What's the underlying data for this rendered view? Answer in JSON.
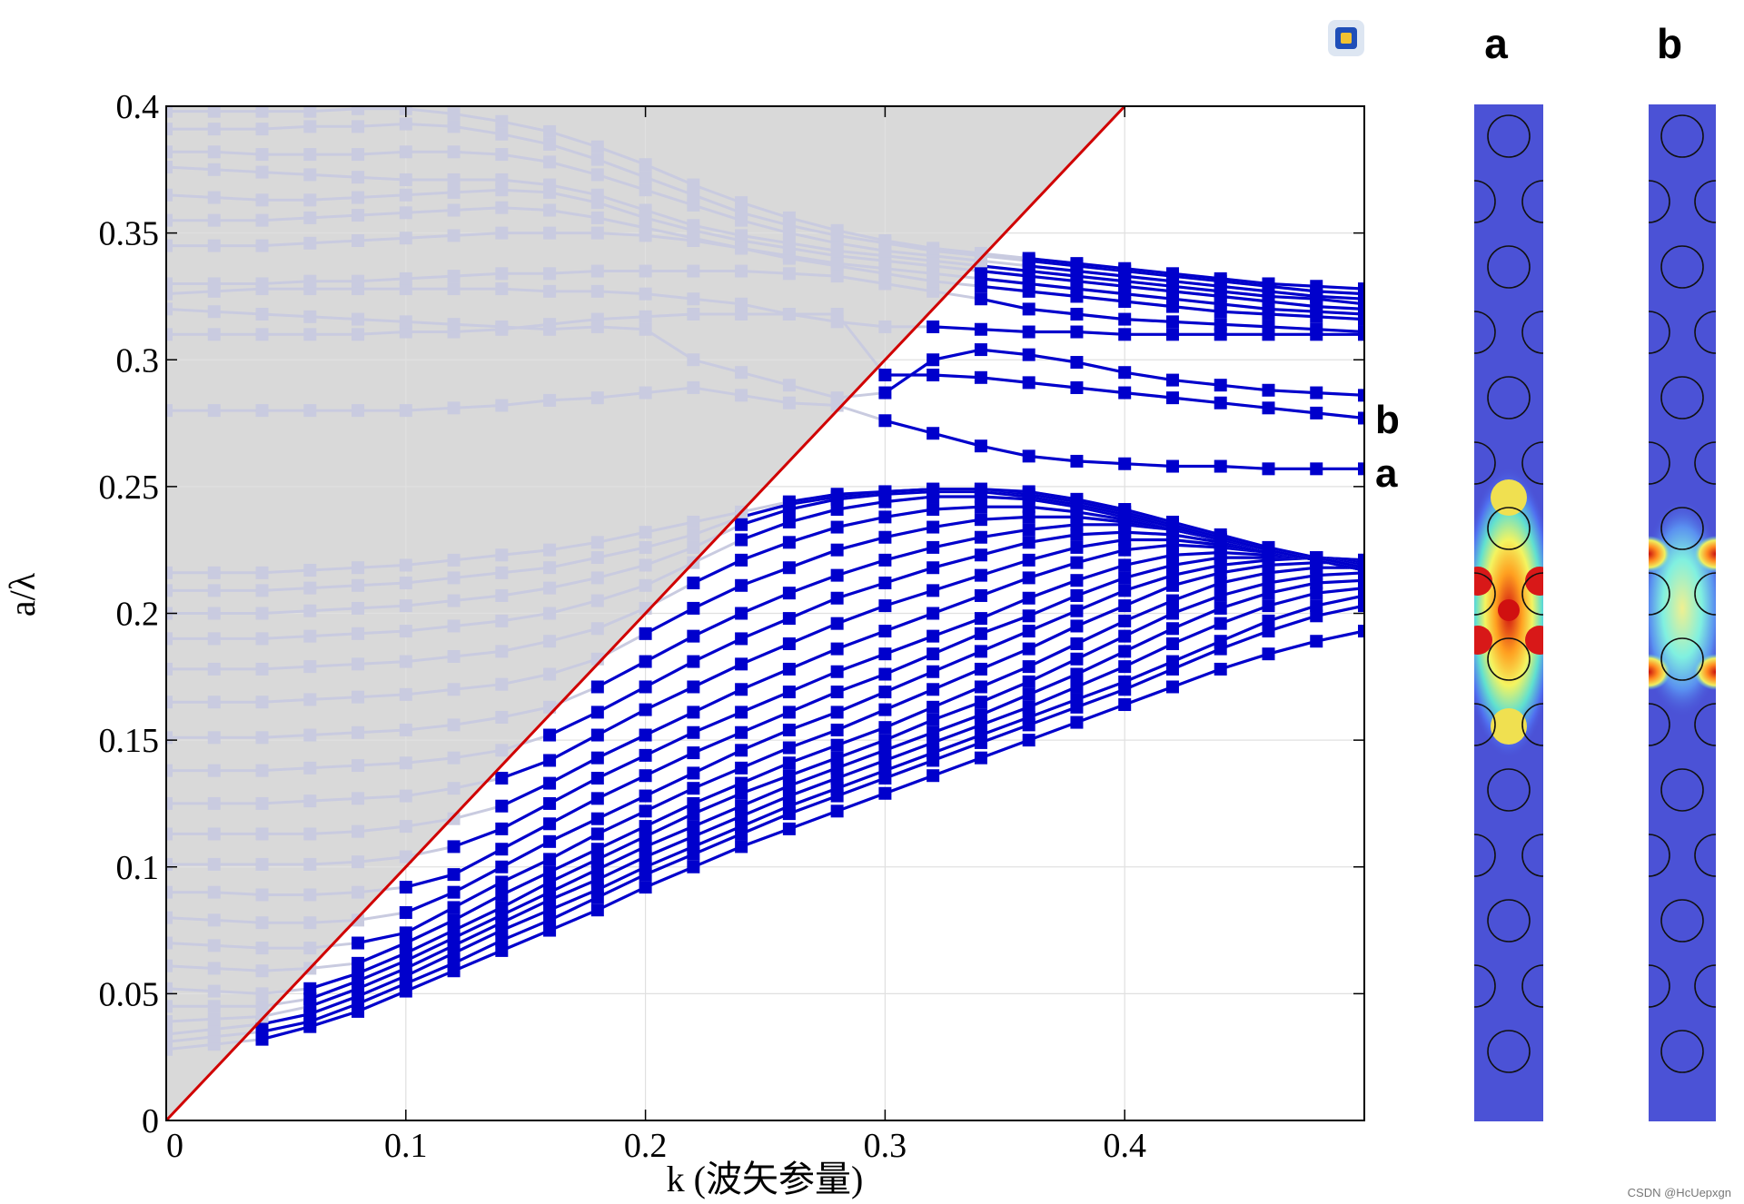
{
  "chart_data": {
    "type": "line",
    "title": "",
    "xlabel": "k (波矢参量)",
    "ylabel": "a/λ",
    "xlim": [
      0,
      0.5
    ],
    "ylim": [
      0,
      0.4
    ],
    "xticks": [
      0,
      0.1,
      0.2,
      0.3,
      0.4
    ],
    "xtick_labels": [
      "0",
      "0.1",
      "0.2",
      "0.3",
      "0.4"
    ],
    "yticks": [
      0,
      0.05,
      0.1,
      0.15,
      0.2,
      0.25,
      0.3,
      0.35,
      0.4
    ],
    "ytick_labels": [
      "0",
      "0.05",
      "0.1",
      "0.15",
      "0.2",
      "0.25",
      "0.3",
      "0.35",
      "0.4"
    ],
    "grid": true,
    "light_line": {
      "x": [
        0,
        0.4
      ],
      "y": [
        0,
        0.4
      ],
      "color": "#d00000"
    },
    "light_cone_fill": "#d9d9d9",
    "series_color": "#0000cc",
    "faded_color": "#c9cbe0",
    "k": [
      0,
      0.02,
      0.04,
      0.06,
      0.08,
      0.1,
      0.12,
      0.14,
      0.16,
      0.18,
      0.2,
      0.22,
      0.24,
      0.26,
      0.28,
      0.3,
      0.32,
      0.34,
      0.36,
      0.38,
      0.4,
      0.42,
      0.44,
      0.46,
      0.48,
      0.5
    ],
    "bands": [
      [
        0.028,
        0.03,
        0.032,
        0.037,
        0.043,
        0.051,
        0.059,
        0.067,
        0.075,
        0.083,
        0.092,
        0.1,
        0.108,
        0.115,
        0.122,
        0.129,
        0.136,
        0.143,
        0.15,
        0.157,
        0.164,
        0.171,
        0.178,
        0.184,
        0.189,
        0.193
      ],
      [
        0.031,
        0.033,
        0.035,
        0.039,
        0.046,
        0.054,
        0.062,
        0.071,
        0.079,
        0.088,
        0.097,
        0.105,
        0.113,
        0.121,
        0.128,
        0.135,
        0.142,
        0.149,
        0.156,
        0.163,
        0.17,
        0.178,
        0.186,
        0.193,
        0.199,
        0.203
      ],
      [
        0.034,
        0.036,
        0.038,
        0.042,
        0.049,
        0.057,
        0.066,
        0.075,
        0.083,
        0.091,
        0.1,
        0.108,
        0.116,
        0.124,
        0.131,
        0.138,
        0.145,
        0.152,
        0.159,
        0.166,
        0.173,
        0.181,
        0.189,
        0.197,
        0.203,
        0.207
      ],
      [
        0.039,
        0.04,
        0.041,
        0.045,
        0.052,
        0.06,
        0.069,
        0.078,
        0.087,
        0.095,
        0.104,
        0.112,
        0.12,
        0.128,
        0.135,
        0.142,
        0.149,
        0.156,
        0.163,
        0.171,
        0.179,
        0.188,
        0.196,
        0.203,
        0.208,
        0.21
      ],
      [
        0.045,
        0.045,
        0.045,
        0.048,
        0.055,
        0.063,
        0.072,
        0.081,
        0.09,
        0.099,
        0.108,
        0.116,
        0.124,
        0.132,
        0.139,
        0.146,
        0.153,
        0.16,
        0.168,
        0.176,
        0.185,
        0.194,
        0.202,
        0.208,
        0.212,
        0.213
      ],
      [
        0.052,
        0.051,
        0.05,
        0.052,
        0.058,
        0.066,
        0.075,
        0.084,
        0.094,
        0.103,
        0.112,
        0.121,
        0.129,
        0.136,
        0.143,
        0.15,
        0.158,
        0.165,
        0.173,
        0.182,
        0.191,
        0.2,
        0.207,
        0.212,
        0.215,
        0.216
      ],
      [
        0.061,
        0.06,
        0.059,
        0.06,
        0.062,
        0.07,
        0.079,
        0.089,
        0.098,
        0.107,
        0.116,
        0.125,
        0.133,
        0.141,
        0.148,
        0.155,
        0.163,
        0.171,
        0.179,
        0.188,
        0.197,
        0.205,
        0.212,
        0.216,
        0.218,
        0.218
      ],
      [
        0.07,
        0.069,
        0.068,
        0.068,
        0.07,
        0.074,
        0.084,
        0.094,
        0.103,
        0.113,
        0.122,
        0.131,
        0.139,
        0.147,
        0.154,
        0.162,
        0.17,
        0.178,
        0.186,
        0.195,
        0.203,
        0.211,
        0.216,
        0.219,
        0.22,
        0.22
      ],
      [
        0.08,
        0.079,
        0.078,
        0.078,
        0.079,
        0.082,
        0.09,
        0.1,
        0.11,
        0.119,
        0.128,
        0.137,
        0.146,
        0.154,
        0.161,
        0.169,
        0.177,
        0.185,
        0.193,
        0.201,
        0.209,
        0.215,
        0.219,
        0.221,
        0.222,
        0.221
      ],
      [
        0.09,
        0.09,
        0.089,
        0.089,
        0.09,
        0.092,
        0.097,
        0.107,
        0.117,
        0.127,
        0.136,
        0.145,
        0.153,
        0.161,
        0.169,
        0.176,
        0.184,
        0.192,
        0.199,
        0.207,
        0.214,
        0.219,
        0.222,
        0.222,
        0.222,
        0.221
      ],
      [
        0.101,
        0.101,
        0.101,
        0.101,
        0.102,
        0.104,
        0.108,
        0.115,
        0.125,
        0.135,
        0.144,
        0.153,
        0.161,
        0.169,
        0.177,
        0.184,
        0.191,
        0.198,
        0.206,
        0.213,
        0.219,
        0.223,
        0.224,
        0.223,
        0.222,
        0.22
      ],
      [
        0.113,
        0.113,
        0.113,
        0.113,
        0.114,
        0.116,
        0.119,
        0.124,
        0.133,
        0.143,
        0.152,
        0.161,
        0.17,
        0.178,
        0.186,
        0.193,
        0.2,
        0.207,
        0.214,
        0.22,
        0.225,
        0.227,
        0.226,
        0.224,
        0.222,
        0.219
      ],
      [
        0.125,
        0.125,
        0.125,
        0.126,
        0.127,
        0.128,
        0.131,
        0.135,
        0.142,
        0.152,
        0.162,
        0.171,
        0.18,
        0.188,
        0.196,
        0.203,
        0.209,
        0.215,
        0.221,
        0.226,
        0.229,
        0.229,
        0.227,
        0.224,
        0.222,
        0.219
      ],
      [
        0.138,
        0.138,
        0.138,
        0.139,
        0.14,
        0.141,
        0.143,
        0.146,
        0.152,
        0.161,
        0.171,
        0.181,
        0.19,
        0.198,
        0.206,
        0.212,
        0.218,
        0.223,
        0.228,
        0.231,
        0.232,
        0.231,
        0.228,
        0.225,
        0.222,
        0.219
      ],
      [
        0.151,
        0.151,
        0.151,
        0.152,
        0.153,
        0.154,
        0.156,
        0.159,
        0.163,
        0.171,
        0.181,
        0.191,
        0.2,
        0.208,
        0.215,
        0.221,
        0.226,
        0.23,
        0.233,
        0.235,
        0.235,
        0.233,
        0.229,
        0.225,
        0.221,
        0.218
      ],
      [
        0.165,
        0.165,
        0.165,
        0.166,
        0.167,
        0.168,
        0.17,
        0.172,
        0.176,
        0.182,
        0.192,
        0.202,
        0.211,
        0.218,
        0.225,
        0.23,
        0.234,
        0.237,
        0.238,
        0.238,
        0.236,
        0.233,
        0.229,
        0.225,
        0.221,
        0.218
      ],
      [
        0.178,
        0.178,
        0.178,
        0.179,
        0.18,
        0.181,
        0.183,
        0.185,
        0.189,
        0.194,
        0.202,
        0.212,
        0.221,
        0.228,
        0.234,
        0.238,
        0.241,
        0.242,
        0.242,
        0.24,
        0.237,
        0.233,
        0.229,
        0.225,
        0.221,
        0.217
      ],
      [
        0.19,
        0.19,
        0.19,
        0.191,
        0.192,
        0.193,
        0.195,
        0.197,
        0.2,
        0.205,
        0.211,
        0.22,
        0.229,
        0.236,
        0.241,
        0.244,
        0.246,
        0.246,
        0.245,
        0.242,
        0.238,
        0.234,
        0.229,
        0.225,
        0.221,
        0.217
      ],
      [
        0.2,
        0.2,
        0.2,
        0.201,
        0.202,
        0.203,
        0.205,
        0.207,
        0.21,
        0.214,
        0.219,
        0.226,
        0.235,
        0.241,
        0.245,
        0.247,
        0.248,
        0.248,
        0.246,
        0.243,
        0.239,
        0.234,
        0.229,
        0.225,
        0.221,
        0.217
      ],
      [
        0.209,
        0.209,
        0.209,
        0.21,
        0.211,
        0.212,
        0.214,
        0.216,
        0.218,
        0.222,
        0.226,
        0.231,
        0.238,
        0.243,
        0.246,
        0.248,
        0.249,
        0.249,
        0.247,
        0.244,
        0.24,
        0.235,
        0.23,
        0.225,
        0.221,
        0.217
      ],
      [
        0.216,
        0.216,
        0.216,
        0.217,
        0.218,
        0.219,
        0.221,
        0.223,
        0.225,
        0.228,
        0.232,
        0.236,
        0.24,
        0.244,
        0.247,
        0.248,
        0.249,
        0.249,
        0.248,
        0.245,
        0.241,
        0.236,
        0.231,
        0.226,
        0.222,
        0.218
      ],
      [
        0.28,
        0.28,
        0.28,
        0.28,
        0.28,
        0.28,
        0.281,
        0.282,
        0.284,
        0.285,
        0.287,
        0.289,
        0.286,
        0.283,
        0.282,
        0.276,
        0.271,
        0.266,
        0.262,
        0.26,
        0.259,
        0.258,
        0.258,
        0.257,
        0.257,
        0.257
      ],
      [
        0.31,
        0.31,
        0.31,
        0.31,
        0.31,
        0.311,
        0.311,
        0.312,
        0.314,
        0.316,
        0.317,
        0.318,
        0.318,
        0.318,
        0.318,
        0.294,
        0.294,
        0.293,
        0.291,
        0.289,
        0.287,
        0.285,
        0.283,
        0.281,
        0.279,
        0.277
      ],
      [
        0.32,
        0.319,
        0.318,
        0.317,
        0.316,
        0.315,
        0.314,
        0.313,
        0.312,
        0.313,
        0.312,
        0.3,
        0.295,
        0.29,
        0.285,
        0.287,
        0.3,
        0.304,
        0.302,
        0.299,
        0.295,
        0.292,
        0.29,
        0.288,
        0.287,
        0.286
      ],
      [
        0.326,
        0.327,
        0.328,
        0.328,
        0.328,
        0.328,
        0.328,
        0.328,
        0.327,
        0.327,
        0.326,
        0.324,
        0.322,
        0.318,
        0.315,
        0.313,
        0.313,
        0.312,
        0.311,
        0.311,
        0.31,
        0.31,
        0.31,
        0.31,
        0.31,
        0.31
      ],
      [
        0.33,
        0.33,
        0.33,
        0.331,
        0.331,
        0.332,
        0.333,
        0.334,
        0.334,
        0.335,
        0.335,
        0.335,
        0.335,
        0.334,
        0.333,
        0.33,
        0.327,
        0.324,
        0.32,
        0.318,
        0.316,
        0.315,
        0.314,
        0.313,
        0.312,
        0.311
      ],
      [
        0.345,
        0.345,
        0.345,
        0.346,
        0.347,
        0.348,
        0.349,
        0.35,
        0.35,
        0.35,
        0.349,
        0.347,
        0.344,
        0.34,
        0.337,
        0.334,
        0.331,
        0.329,
        0.327,
        0.325,
        0.323,
        0.321,
        0.319,
        0.318,
        0.317,
        0.316
      ],
      [
        0.355,
        0.355,
        0.355,
        0.356,
        0.357,
        0.358,
        0.359,
        0.36,
        0.359,
        0.356,
        0.352,
        0.348,
        0.344,
        0.341,
        0.338,
        0.336,
        0.334,
        0.332,
        0.33,
        0.328,
        0.326,
        0.324,
        0.322,
        0.32,
        0.319,
        0.318
      ],
      [
        0.365,
        0.364,
        0.363,
        0.363,
        0.364,
        0.365,
        0.366,
        0.367,
        0.366,
        0.362,
        0.356,
        0.351,
        0.347,
        0.344,
        0.341,
        0.339,
        0.337,
        0.335,
        0.333,
        0.331,
        0.329,
        0.327,
        0.325,
        0.323,
        0.321,
        0.32
      ],
      [
        0.376,
        0.375,
        0.374,
        0.373,
        0.372,
        0.371,
        0.371,
        0.371,
        0.369,
        0.365,
        0.359,
        0.353,
        0.349,
        0.346,
        0.343,
        0.341,
        0.339,
        0.337,
        0.335,
        0.333,
        0.331,
        0.329,
        0.327,
        0.325,
        0.324,
        0.322
      ],
      [
        0.382,
        0.382,
        0.381,
        0.381,
        0.381,
        0.382,
        0.382,
        0.381,
        0.378,
        0.373,
        0.367,
        0.361,
        0.355,
        0.35,
        0.346,
        0.343,
        0.341,
        0.339,
        0.337,
        0.335,
        0.333,
        0.331,
        0.329,
        0.327,
        0.325,
        0.324
      ],
      [
        0.391,
        0.391,
        0.391,
        0.392,
        0.392,
        0.393,
        0.392,
        0.389,
        0.385,
        0.379,
        0.372,
        0.365,
        0.358,
        0.353,
        0.349,
        0.346,
        0.343,
        0.341,
        0.339,
        0.337,
        0.335,
        0.333,
        0.331,
        0.329,
        0.327,
        0.326
      ],
      [
        0.398,
        0.398,
        0.398,
        0.398,
        0.399,
        0.399,
        0.397,
        0.394,
        0.39,
        0.384,
        0.377,
        0.369,
        0.362,
        0.356,
        0.351,
        0.347,
        0.344,
        0.342,
        0.34,
        0.338,
        0.336,
        0.334,
        0.332,
        0.33,
        0.329,
        0.328
      ]
    ],
    "annotations": [
      {
        "text": "b",
        "k": 0.5,
        "y": 0.276
      },
      {
        "text": "a",
        "k": 0.5,
        "y": 0.254
      }
    ]
  },
  "panels": [
    {
      "label": "a",
      "colormap": "jet"
    },
    {
      "label": "b",
      "colormap": "jet"
    }
  ],
  "watermark": "CSDN @HcUepxgn"
}
